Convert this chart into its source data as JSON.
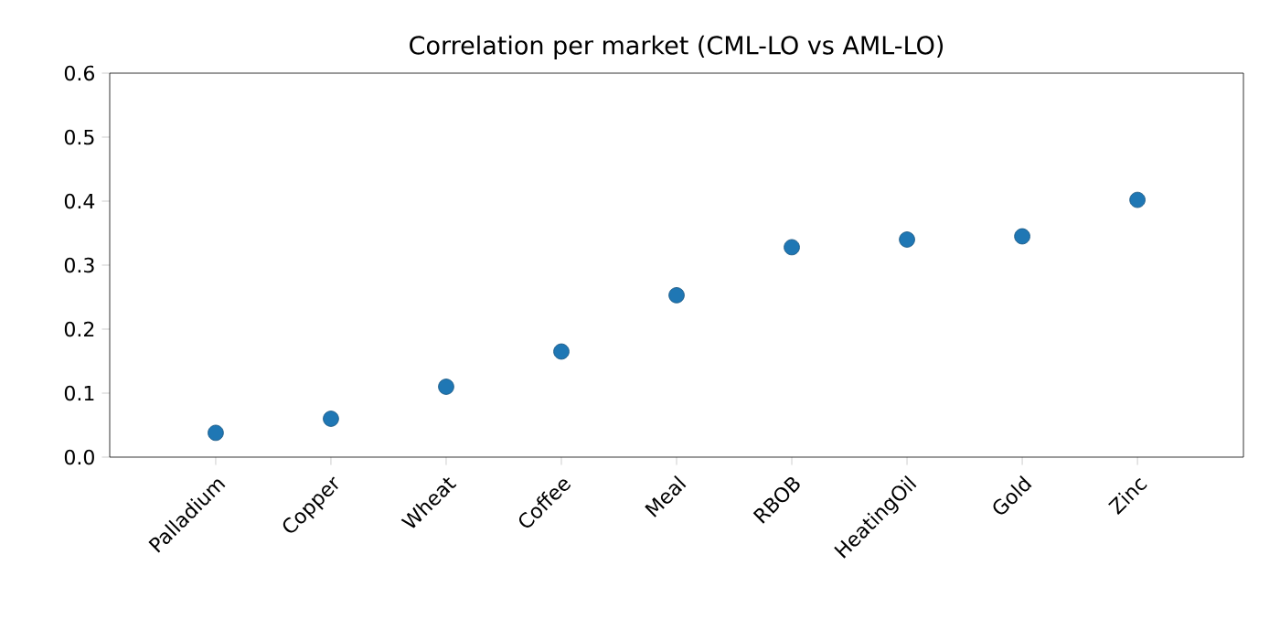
{
  "chart_data": {
    "type": "scatter",
    "title": "Correlation per market (CML-LO vs AML-LO)",
    "categories": [
      "Palladium",
      "Copper",
      "Wheat",
      "Coffee",
      "Meal",
      "RBOB",
      "HeatingOil",
      "Gold",
      "Zinc"
    ],
    "values": [
      0.038,
      0.06,
      0.11,
      0.165,
      0.253,
      0.328,
      0.34,
      0.345,
      0.402
    ],
    "color": "#1f77b4",
    "marker": "circle",
    "ylim": [
      0,
      0.6
    ],
    "yticks": [
      {
        "value": 0,
        "label": "0.0"
      },
      {
        "value": 0.1,
        "label": "0.1"
      },
      {
        "value": 0.2,
        "label": "0.2"
      },
      {
        "value": 0.3,
        "label": "0.3"
      },
      {
        "value": 0.4,
        "label": "0.4"
      },
      {
        "value": 0.5,
        "label": "0.5"
      },
      {
        "value": 0.6,
        "label": "0.6"
      }
    ]
  }
}
